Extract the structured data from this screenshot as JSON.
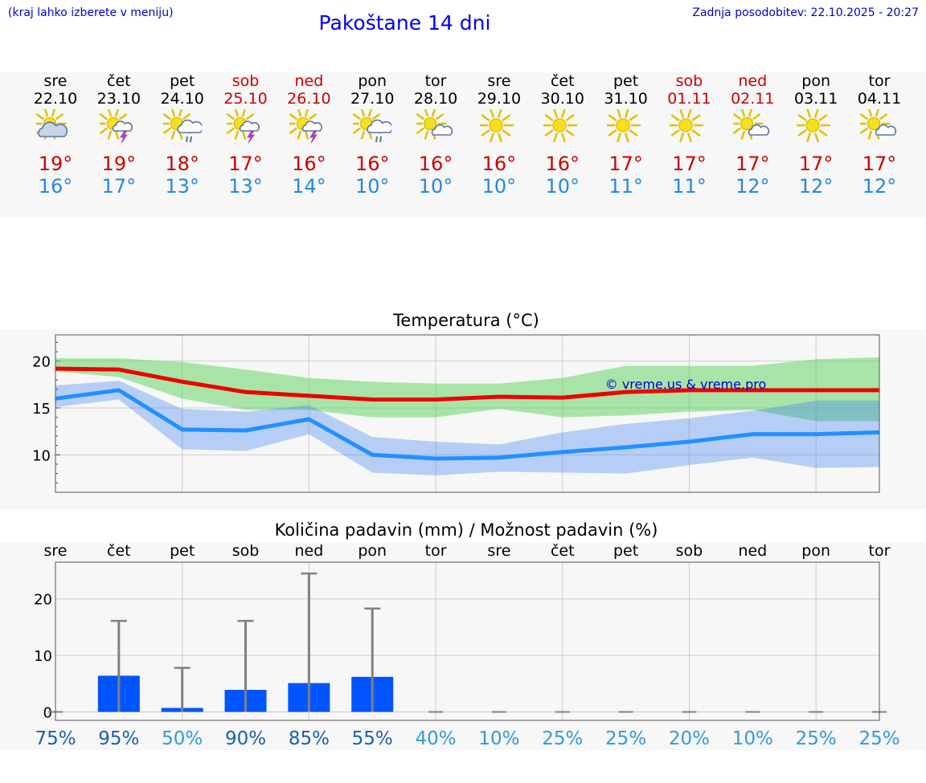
{
  "header": {
    "hint": "(kraj lahko izberete v meniju)",
    "title": "Pakoštane 14 dni",
    "updated": "Zadnja posodobitev: 22.10.2025 - 20:27"
  },
  "days": [
    {
      "name": "sre",
      "date": "22.10",
      "weekend": false,
      "icon": "sun-cloud-icon",
      "max": "19°",
      "min": "16°"
    },
    {
      "name": "čet",
      "date": "23.10",
      "weekend": false,
      "icon": "sun-thunderstorm-icon",
      "max": "19°",
      "min": "17°"
    },
    {
      "name": "pet",
      "date": "24.10",
      "weekend": false,
      "icon": "sun-rain-icon",
      "max": "18°",
      "min": "13°"
    },
    {
      "name": "sob",
      "date": "25.10",
      "weekend": true,
      "icon": "sun-thunderstorm-icon",
      "max": "17°",
      "min": "13°"
    },
    {
      "name": "ned",
      "date": "26.10",
      "weekend": true,
      "icon": "sun-thunderstorm-icon",
      "max": "16°",
      "min": "14°"
    },
    {
      "name": "pon",
      "date": "27.10",
      "weekend": false,
      "icon": "sun-rain-icon",
      "max": "16°",
      "min": "10°"
    },
    {
      "name": "tor",
      "date": "28.10",
      "weekend": false,
      "icon": "sun-small-cloud-icon",
      "max": "16°",
      "min": "10°"
    },
    {
      "name": "sre",
      "date": "29.10",
      "weekend": false,
      "icon": "sun-icon",
      "max": "16°",
      "min": "10°"
    },
    {
      "name": "čet",
      "date": "30.10",
      "weekend": false,
      "icon": "sun-icon",
      "max": "16°",
      "min": "10°"
    },
    {
      "name": "pet",
      "date": "31.10",
      "weekend": false,
      "icon": "sun-icon",
      "max": "17°",
      "min": "11°"
    },
    {
      "name": "sob",
      "date": "01.11",
      "weekend": true,
      "icon": "sun-icon",
      "max": "17°",
      "min": "11°"
    },
    {
      "name": "ned",
      "date": "02.11",
      "weekend": true,
      "icon": "sun-small-cloud-icon",
      "max": "17°",
      "min": "12°"
    },
    {
      "name": "pon",
      "date": "03.11",
      "weekend": false,
      "icon": "sun-icon",
      "max": "17°",
      "min": "12°"
    },
    {
      "name": "tor",
      "date": "04.11",
      "weekend": false,
      "icon": "sun-small-cloud-icon",
      "max": "17°",
      "min": "12°"
    }
  ],
  "chart_data": [
    {
      "type": "line",
      "title": "Temperatura (°C)",
      "watermark": "© vreme.us & vreme.pro",
      "x": [
        "22.10",
        "23.10",
        "24.10",
        "25.10",
        "26.10",
        "27.10",
        "28.10",
        "29.10",
        "30.10",
        "31.10",
        "01.11",
        "02.11",
        "03.11",
        "04.11"
      ],
      "ylim": [
        6,
        22.8
      ],
      "yticks": [
        10,
        15,
        20
      ],
      "grid": true,
      "series": [
        {
          "role": "max",
          "color": "#ee0000",
          "values": [
            19.2,
            19.1,
            17.8,
            16.7,
            16.3,
            15.9,
            15.9,
            16.2,
            16.1,
            16.7,
            16.9,
            16.9,
            16.9,
            16.9
          ],
          "band_low": [
            18.9,
            18.3,
            16.0,
            14.8,
            14.8,
            14.0,
            14.0,
            14.9,
            14.0,
            14.2,
            14.6,
            14.8,
            13.6,
            13.6
          ],
          "band_high": [
            20.3,
            20.3,
            19.9,
            19.1,
            18.2,
            17.8,
            17.6,
            17.6,
            18.2,
            19.5,
            19.5,
            19.5,
            20.2,
            20.4
          ]
        },
        {
          "role": "min",
          "color": "#2290ff",
          "values": [
            16.0,
            16.9,
            12.7,
            12.6,
            13.8,
            10.0,
            9.6,
            9.7,
            10.3,
            10.8,
            11.4,
            12.2,
            12.2,
            12.4
          ],
          "band_low": [
            15.1,
            15.9,
            10.6,
            10.4,
            12.2,
            8.1,
            7.8,
            8.2,
            8.1,
            8.0,
            8.9,
            9.7,
            8.6,
            8.7
          ],
          "band_high": [
            17.4,
            17.9,
            14.9,
            14.6,
            15.3,
            11.9,
            11.4,
            11.1,
            12.4,
            13.3,
            13.9,
            14.7,
            15.8,
            15.8
          ]
        }
      ]
    },
    {
      "type": "bar",
      "title": "Količina padavin (mm) / Možnost padavin (%)",
      "categories": [
        "sre",
        "čet",
        "pet",
        "sob",
        "ned",
        "pon",
        "tor",
        "sre",
        "čet",
        "pet",
        "sob",
        "ned",
        "pon",
        "tor"
      ],
      "values": [
        0,
        6.4,
        0.7,
        3.9,
        5.1,
        6.2,
        0,
        0,
        0,
        0,
        0,
        0,
        0,
        0
      ],
      "error_high": [
        0,
        16.1,
        7.8,
        16.1,
        24.5,
        18.3,
        0,
        0,
        0,
        0,
        0,
        0,
        0,
        0
      ],
      "chance": [
        "75%",
        "95%",
        "50%",
        "90%",
        "85%",
        "55%",
        "40%",
        "10%",
        "25%",
        "25%",
        "20%",
        "10%",
        "25%",
        "25%"
      ],
      "chance_strong": [
        true,
        true,
        false,
        true,
        true,
        true,
        false,
        false,
        false,
        false,
        false,
        false,
        false,
        false
      ],
      "ylim": [
        -1.5,
        26.5
      ],
      "yticks": [
        0,
        10,
        20
      ],
      "bar_color": "#0055ff",
      "grid": true
    }
  ]
}
